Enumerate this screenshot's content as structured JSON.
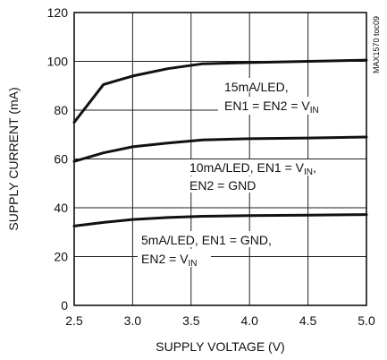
{
  "chart_data": {
    "type": "line",
    "title": "",
    "xlabel": "SUPPLY VOLTAGE (V)",
    "ylabel": "SUPPLY CURRENT (mA)",
    "xlim": [
      2.5,
      5.0
    ],
    "ylim": [
      0,
      120
    ],
    "xticks": [
      "2.5",
      "3.0",
      "3.5",
      "4.0",
      "4.5",
      "5.0"
    ],
    "yticks": [
      "0",
      "20",
      "40",
      "60",
      "80",
      "100",
      "120"
    ],
    "grid": true,
    "figure_code": "MAX1570 toc09",
    "series": [
      {
        "x": [
          2.5,
          2.75,
          3.0,
          3.3,
          3.6,
          4.0,
          4.5,
          5.0
        ],
        "y": [
          75,
          90.5,
          94,
          97,
          99,
          99.5,
          100,
          100.5
        ]
      },
      {
        "x": [
          2.5,
          2.75,
          3.0,
          3.3,
          3.6,
          4.0,
          4.5,
          5.0
        ],
        "y": [
          59,
          62.5,
          65,
          66.5,
          67.8,
          68.3,
          68.6,
          69
        ]
      },
      {
        "x": [
          2.5,
          2.75,
          3.0,
          3.3,
          3.6,
          4.0,
          4.5,
          5.0
        ],
        "y": [
          32.5,
          34,
          35.2,
          36,
          36.5,
          36.8,
          37,
          37.2
        ]
      }
    ],
    "annotations": [
      {
        "lines": [
          [
            {
              "t": "15mA/LED,"
            }
          ],
          [
            {
              "t": "EN1 = EN2 = V"
            },
            {
              "t": "IN",
              "sub": true
            }
          ]
        ]
      },
      {
        "lines": [
          [
            {
              "t": "10mA/LED, EN1 = V"
            },
            {
              "t": "IN",
              "sub": true
            },
            {
              "t": ","
            }
          ],
          [
            {
              "t": "EN2 = GND"
            }
          ]
        ]
      },
      {
        "lines": [
          [
            {
              "t": "5mA/LED, EN1 = GND,"
            }
          ],
          [
            {
              "t": "EN2 = V"
            },
            {
              "t": "IN",
              "sub": true
            }
          ]
        ]
      }
    ]
  }
}
